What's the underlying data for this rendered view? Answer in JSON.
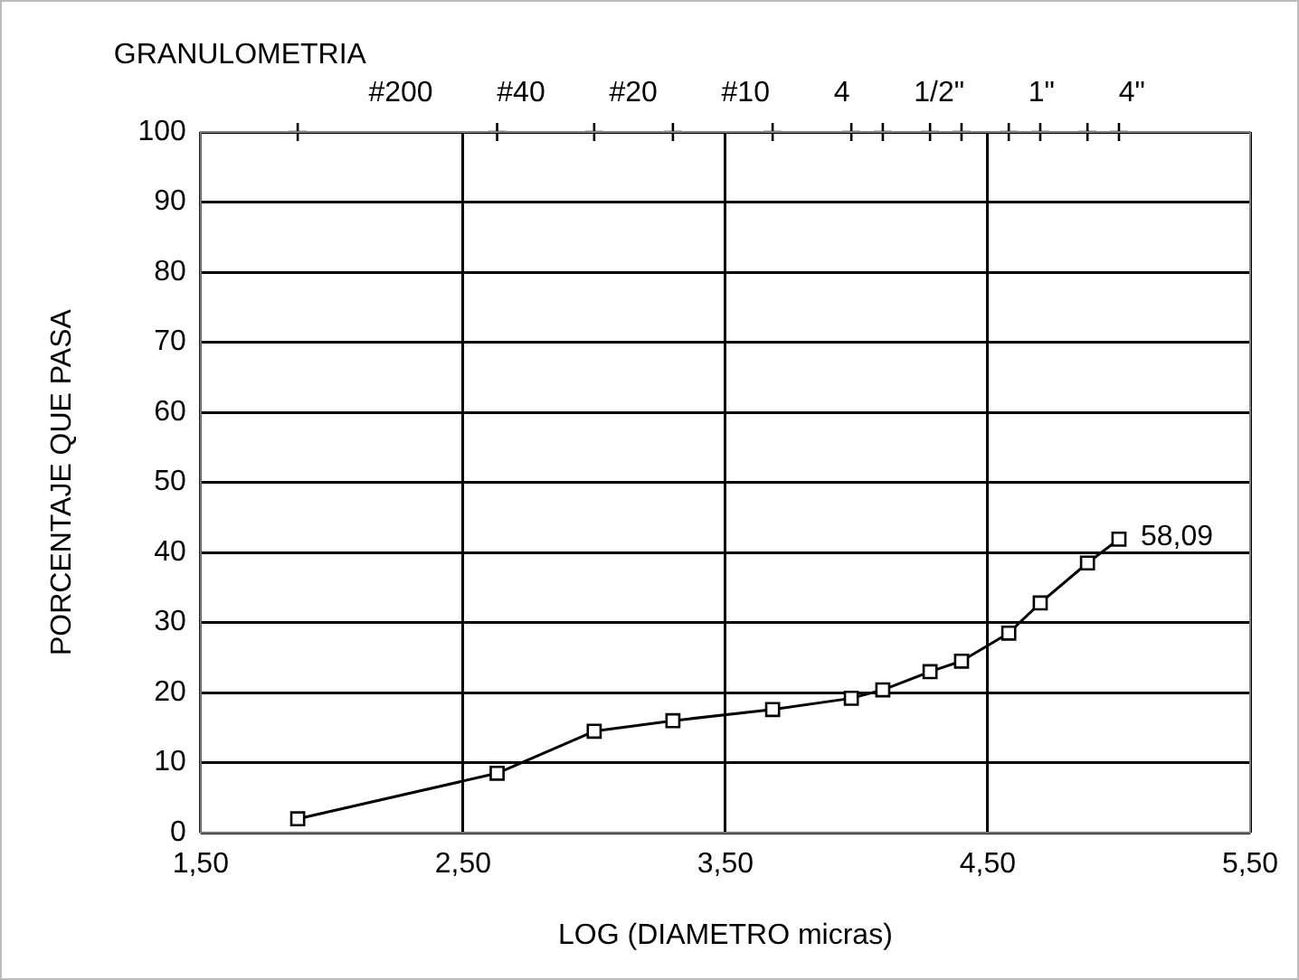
{
  "chart_data": {
    "type": "line",
    "title": "GRANULOMETRIA",
    "xlabel": "LOG (DIAMETRO micras)",
    "ylabel": "PORCENTAJE QUE PASA",
    "x": [
      1.87,
      2.63,
      3.0,
      3.3,
      3.68,
      3.98,
      4.1,
      4.28,
      4.4,
      4.58,
      4.7,
      4.88,
      5.0
    ],
    "series": [
      {
        "color": "#000000",
        "values": [
          2.0,
          8.5,
          14.5,
          16.0,
          17.6,
          19.2,
          20.4,
          23.0,
          24.5,
          28.5,
          32.8,
          38.5,
          41.9
        ]
      },
      {
        "type": "scatter",
        "marker": "cross",
        "color": "#000000",
        "x": [
          1.87,
          2.63,
          3.0,
          3.3,
          3.68,
          3.98,
          4.1,
          4.28,
          4.4,
          4.58,
          4.7,
          4.88,
          5.0
        ],
        "values": [
          100,
          100,
          100,
          100,
          100,
          100,
          100,
          100,
          100,
          100,
          100,
          100,
          100
        ]
      }
    ],
    "marker": "square",
    "line_style": "solid",
    "grid": true,
    "legend": false,
    "xlim": [
      1.5,
      5.5
    ],
    "xticks": [
      {
        "value": 1.5,
        "label": "1,50"
      },
      {
        "value": 2.5,
        "label": "2,50"
      },
      {
        "value": 3.5,
        "label": "3,50"
      },
      {
        "value": 4.5,
        "label": "4,50"
      },
      {
        "value": 5.5,
        "label": "5,50"
      }
    ],
    "ylim": [
      0,
      100
    ],
    "yticks": [
      0,
      10,
      20,
      30,
      40,
      50,
      60,
      70,
      80,
      90,
      100
    ],
    "annotations": [
      {
        "text": "58,09",
        "x": 5.0,
        "y": 41.9
      },
      "#200",
      "#40",
      "#20",
      "#10",
      "4",
      "1/2\"",
      "1\"",
      "4\""
    ]
  }
}
